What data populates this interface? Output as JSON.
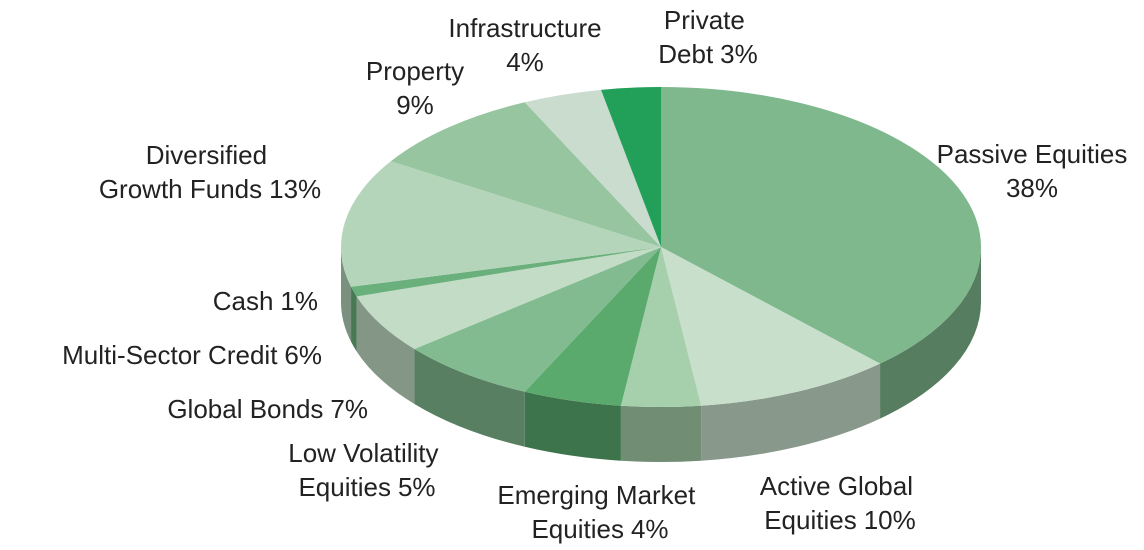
{
  "chart_data": {
    "type": "pie",
    "categories": [
      "Passive Equities",
      "Active Global Equities",
      "Emerging Market Equities",
      "Low Volatility Equities",
      "Global Bonds",
      "Multi-Sector Credit",
      "Cash",
      "Diversified Growth Funds",
      "Property",
      "Infrastructure",
      "Private Debt"
    ],
    "values": [
      38,
      10,
      4,
      5,
      7,
      6,
      1,
      13,
      9,
      4,
      3
    ],
    "value_labels": [
      "38%",
      "10%",
      "4%",
      "5%",
      "7%",
      "6%",
      "1%",
      "13%",
      "9%",
      "4%",
      "3%"
    ],
    "colors": [
      "#7fb88c",
      "#c8dfcb",
      "#a6cfab",
      "#5aaa6e",
      "#82bb8f",
      "#c2dcc5",
      "#6ab07c",
      "#b5d5bb",
      "#97c5a0",
      "#c9dccd",
      "#22a05a"
    ]
  }
}
